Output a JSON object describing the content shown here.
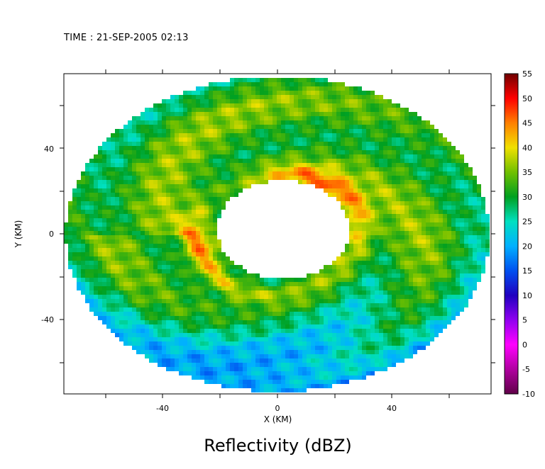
{
  "header": {
    "time_label": "TIME : 21-SEP-2005 02:13"
  },
  "chart_data": {
    "type": "heatmap",
    "title": "TIME : 21-SEP-2005 02:13",
    "caption": "Reflectivity (dBZ)",
    "xlabel": "X (KM)",
    "ylabel": "Y (KM)",
    "xlim": [
      -75,
      75
    ],
    "ylim": [
      -75,
      75
    ],
    "x_ticks": [
      -40,
      0,
      40
    ],
    "y_ticks": [
      -40,
      0,
      40
    ],
    "colorbar": {
      "label": "Reflectivity (dBZ)",
      "range": [
        -10,
        55
      ],
      "tick_labels": [
        "55",
        "50",
        "45",
        "40",
        "35",
        "30",
        "25",
        "20",
        "15",
        "10",
        "5",
        "0",
        "-5",
        "-10"
      ],
      "stops": [
        {
          "value": -10,
          "color": "#600048"
        },
        {
          "value": -5,
          "color": "#b000a0"
        },
        {
          "value": 0,
          "color": "#ff00ff"
        },
        {
          "value": 5,
          "color": "#9000f0"
        },
        {
          "value": 10,
          "color": "#2000c0"
        },
        {
          "value": 15,
          "color": "#0050f0"
        },
        {
          "value": 20,
          "color": "#00b0ff"
        },
        {
          "value": 25,
          "color": "#00e0c0"
        },
        {
          "value": 30,
          "color": "#00a020"
        },
        {
          "value": 35,
          "color": "#70c000"
        },
        {
          "value": 40,
          "color": "#f0e000"
        },
        {
          "value": 45,
          "color": "#ff8000"
        },
        {
          "value": 50,
          "color": "#ff0000"
        },
        {
          "value": 55,
          "color": "#700000"
        }
      ]
    },
    "field": {
      "description_type": "hurricane radar reflectivity annulus",
      "eye_radius_km": 24,
      "outer_radius_km": 74,
      "peak_dbz": 48,
      "eyewall_dbz": 46,
      "background_dbz": 33
    }
  }
}
